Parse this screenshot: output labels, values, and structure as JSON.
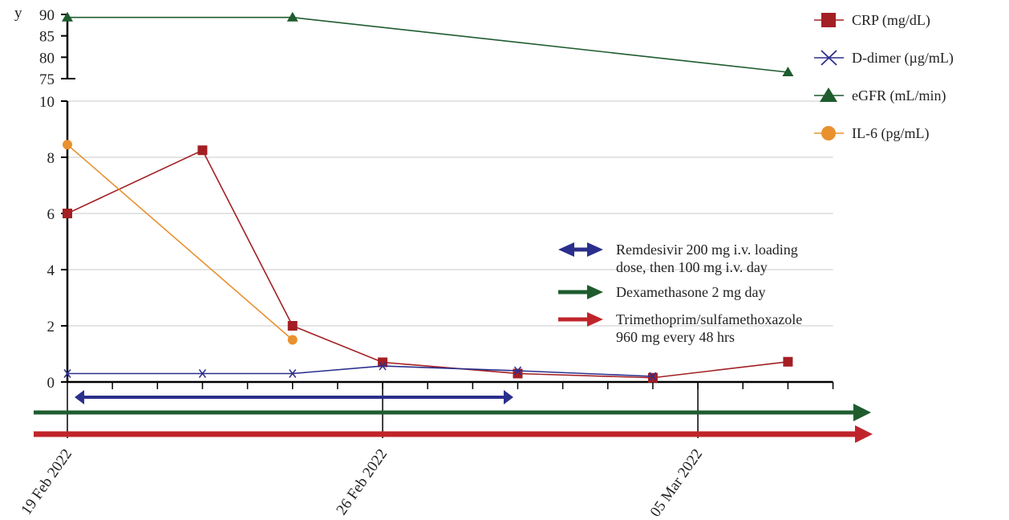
{
  "chart_data": {
    "type": "line",
    "ylabel": "y",
    "x_ticks": [
      "19 Feb 2022",
      "26 Feb 2022",
      "05 Mar 2022"
    ],
    "x_range": [
      "2022-02-19",
      "2022-03-08"
    ],
    "upper_axis": {
      "ylim": [
        75,
        90
      ],
      "ticks": [
        "75",
        "80",
        "85",
        "90"
      ]
    },
    "lower_axis": {
      "ylim": [
        0,
        10
      ],
      "ticks": [
        "0",
        "2",
        "4",
        "6",
        "8",
        "10"
      ],
      "grid": true
    },
    "series": [
      {
        "name": "CRP (mg/dL)",
        "axis": "lower",
        "color": "#a31f24",
        "marker": "square",
        "points": [
          [
            "2022-02-19",
            6.0
          ],
          [
            "2022-02-22",
            8.25
          ],
          [
            "2022-02-24",
            2.0
          ],
          [
            "2022-02-26",
            0.7
          ],
          [
            "2022-03-01",
            0.3
          ],
          [
            "2022-03-04",
            0.15
          ],
          [
            "2022-03-07",
            0.72
          ]
        ]
      },
      {
        "name": "D-dimer (µg/mL)",
        "axis": "lower",
        "color": "#2b2f8c",
        "marker": "x",
        "points": [
          [
            "2022-02-19",
            0.3
          ],
          [
            "2022-02-22",
            0.3
          ],
          [
            "2022-02-24",
            0.3
          ],
          [
            "2022-02-26",
            0.57
          ],
          [
            "2022-03-01",
            0.4
          ],
          [
            "2022-03-04",
            0.2
          ]
        ]
      },
      {
        "name": "eGFR (mL/min)",
        "axis": "upper",
        "color": "#1e5c2e",
        "marker": "triangle",
        "points": [
          [
            "2022-02-19",
            89.3
          ],
          [
            "2022-02-24",
            89.3
          ],
          [
            "2022-03-07",
            76.5
          ]
        ]
      },
      {
        "name": "IL-6 (pg/mL)",
        "axis": "lower",
        "color": "#e8912e",
        "marker": "circle",
        "points": [
          [
            "2022-02-19",
            8.45
          ],
          [
            "2022-02-24",
            1.5
          ]
        ]
      }
    ],
    "treatments": [
      {
        "label_lines": [
          "Remdesivir 200 mg i.v. loading",
          "dose, then 100 mg i.v. day"
        ],
        "color": "#2b2f8c",
        "style": "double-arrow",
        "start": "2022-02-19",
        "end": "2022-03-01"
      },
      {
        "label_lines": [
          "Dexamethasone 2 mg day"
        ],
        "color": "#1e5c2e",
        "style": "arrow",
        "start": "2022-02-18",
        "end": "2022-03-10"
      },
      {
        "label_lines": [
          "Trimethoprim/sulfamethoxazole",
          "960 mg every 48 hrs"
        ],
        "color": "#c0242b",
        "style": "arrow",
        "start": "2022-02-18",
        "end": "2022-03-10"
      }
    ]
  }
}
